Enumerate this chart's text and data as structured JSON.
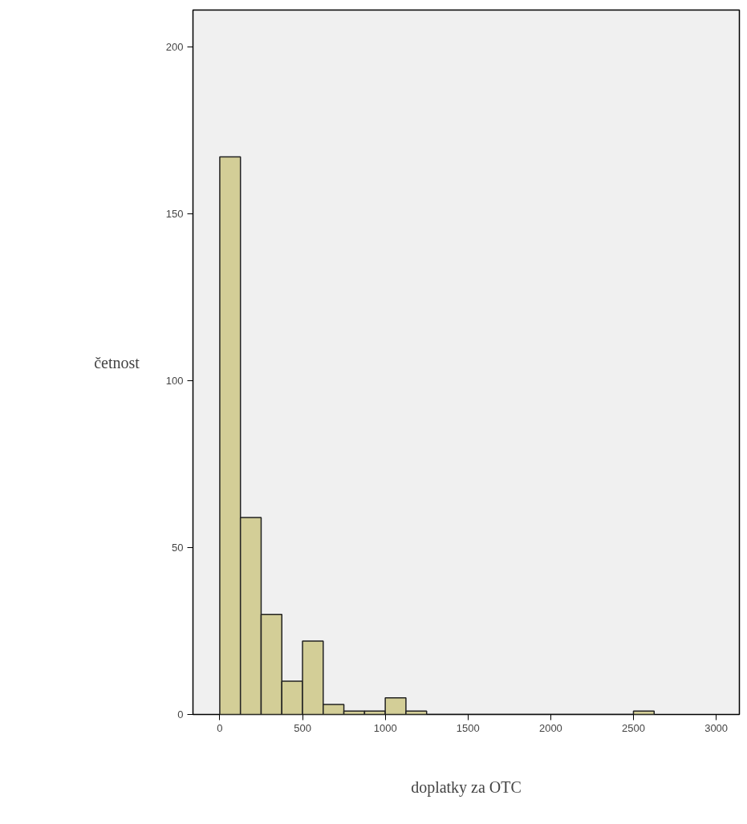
{
  "chart_data": {
    "type": "histogram",
    "xlabel": "doplatky za OTC",
    "ylabel": "četnost",
    "bins": [
      0,
      125,
      250,
      375,
      500,
      625,
      750,
      875,
      1000,
      1125,
      1250,
      1375,
      1500,
      1625,
      1750,
      1875,
      2000,
      2125,
      2250,
      2375,
      2500,
      2625
    ],
    "values": [
      167,
      59,
      30,
      10,
      22,
      3,
      1,
      1,
      5,
      1,
      0,
      0,
      0,
      0,
      0,
      0,
      0,
      0,
      0,
      0,
      1
    ],
    "color": "#d3ce97",
    "xlim": [
      -162,
      3140
    ],
    "ylim": [
      0,
      211
    ],
    "xticks": [
      0,
      500,
      1000,
      1500,
      2000,
      2500,
      3000
    ],
    "yticks": [
      0,
      50,
      100,
      150,
      200
    ],
    "grid": false
  }
}
